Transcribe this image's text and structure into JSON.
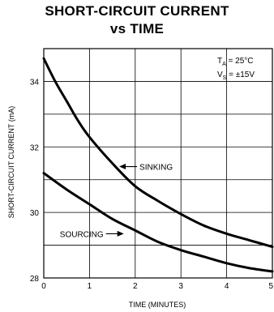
{
  "chart_data": {
    "type": "line",
    "title_line1": "SHORT-CIRCUIT CURRENT",
    "title_line2": "vs TIME",
    "xlabel": "TIME (MINUTES)",
    "ylabel": "SHORT-CIRCUIT CURRENT (mA)",
    "xlim": [
      0,
      5
    ],
    "ylim": [
      28,
      35
    ],
    "xticks": [
      0,
      1,
      2,
      3,
      4,
      5
    ],
    "yticks": [
      28,
      30,
      32,
      34
    ],
    "grid": true,
    "conditions": {
      "ta_label": "T",
      "ta_sub": "A",
      "ta_value": " = 25°C",
      "vs_label": "V",
      "vs_sub": "S",
      "vs_value": " = ±15V"
    },
    "series": [
      {
        "name": "SINKING",
        "x": [
          0,
          0.25,
          0.5,
          0.75,
          1,
          1.5,
          2,
          2.5,
          3,
          3.5,
          4,
          4.5,
          5
        ],
        "y": [
          34.7,
          34.0,
          33.4,
          32.8,
          32.3,
          31.5,
          30.8,
          30.35,
          29.95,
          29.6,
          29.35,
          29.15,
          28.95
        ]
      },
      {
        "name": "SOURCING",
        "x": [
          0,
          0.5,
          1,
          1.5,
          2,
          2.5,
          3,
          3.5,
          4,
          4.5,
          5
        ],
        "y": [
          31.2,
          30.7,
          30.25,
          29.8,
          29.45,
          29.1,
          28.85,
          28.65,
          28.45,
          28.3,
          28.2
        ]
      }
    ],
    "annotations": [
      {
        "text": "SINKING",
        "series": "SINKING",
        "arrow_x": 1.65,
        "arrow_y": 31.4
      },
      {
        "text": "SOURCING",
        "series": "SOURCING",
        "arrow_x": 1.75,
        "arrow_y": 29.35
      }
    ]
  }
}
